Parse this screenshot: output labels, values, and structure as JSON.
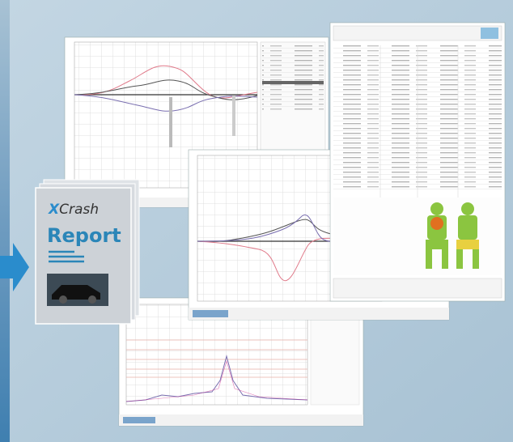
{
  "logo": {
    "mark": "X",
    "name": "Crash"
  },
  "title": "Report"
}
